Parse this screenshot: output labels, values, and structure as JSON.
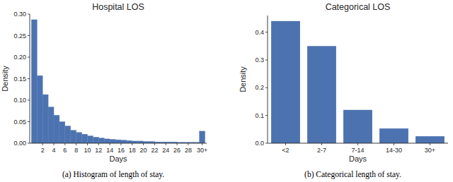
{
  "chart_data": [
    {
      "type": "histogram",
      "title": "Hospital LOS",
      "x_label": "Days",
      "y_label": "Density",
      "caption": "(a) Histogram of length of stay.",
      "bins": [
        0,
        1,
        2,
        3,
        4,
        5,
        6,
        7,
        8,
        9,
        10,
        11,
        12,
        13,
        14,
        15,
        16,
        17,
        18,
        19,
        20,
        21,
        22,
        23,
        24,
        25,
        26,
        27,
        28,
        29,
        30,
        31
      ],
      "values": [
        0.287,
        0.157,
        0.113,
        0.084,
        0.065,
        0.05,
        0.04,
        0.03,
        0.025,
        0.021,
        0.017,
        0.014,
        0.012,
        0.01,
        0.009,
        0.008,
        0.007,
        0.006,
        0.005,
        0.005,
        0.004,
        0.004,
        0.003,
        0.003,
        0.003,
        0.003,
        0.002,
        0.002,
        0.002,
        0.002,
        0.028
      ],
      "color": "#4c72b0",
      "xlim": [
        -0.3,
        31.3
      ],
      "ylim": [
        0,
        0.3
      ],
      "xticks": [
        2,
        4,
        6,
        8,
        10,
        12,
        14,
        16,
        18,
        20,
        22,
        24,
        26,
        28,
        {
          "value": 30.5,
          "label": "30+"
        }
      ],
      "yticks": [
        {
          "value": 0,
          "label": "0.00"
        },
        {
          "value": 0.05,
          "label": "0.05"
        },
        {
          "value": 0.1,
          "label": "0.10"
        },
        {
          "value": 0.15,
          "label": "0.15"
        },
        {
          "value": 0.2,
          "label": "0.20"
        },
        {
          "value": 0.25,
          "label": "0.25"
        },
        {
          "value": 0.3,
          "label": "0.30"
        }
      ],
      "grid": false
    },
    {
      "type": "bar",
      "title": "Categorical LOS",
      "x_label": "Days",
      "y_label": "Density",
      "caption": "(b) Categorical length of stay.",
      "categories": [
        "<2",
        "2-7",
        "7-14",
        "14-30",
        "30+"
      ],
      "values": [
        0.44,
        0.35,
        0.12,
        0.053,
        0.025
      ],
      "color": "#4c72b0",
      "ylim": [
        0,
        0.46
      ],
      "yticks": [
        {
          "value": 0,
          "label": "0.0"
        },
        {
          "value": 0.1,
          "label": "0.1"
        },
        {
          "value": 0.2,
          "label": "0.2"
        },
        {
          "value": 0.3,
          "label": "0.3"
        },
        {
          "value": 0.4,
          "label": "0.4"
        }
      ],
      "grid": false
    }
  ]
}
